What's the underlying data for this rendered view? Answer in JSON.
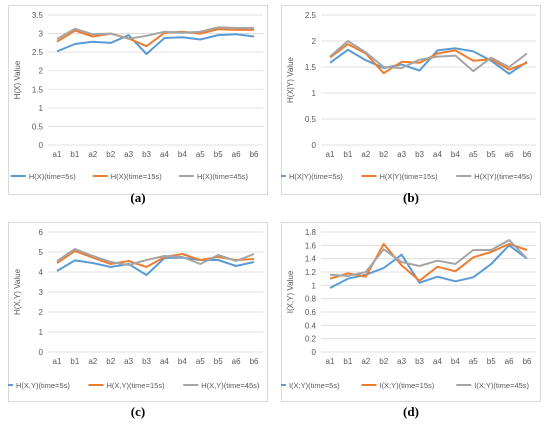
{
  "chart_data": [
    {
      "type": "line",
      "caption": "(a)",
      "ylabel": "H(X) Value",
      "categories": [
        "a1",
        "b1",
        "a2",
        "b2",
        "a3",
        "b3",
        "a4",
        "b4",
        "a5",
        "b5",
        "a6",
        "b6"
      ],
      "ylim": [
        0,
        3.5
      ],
      "yticks": [
        "0",
        "0.5",
        "1",
        "1.5",
        "2",
        "2.5",
        "3",
        "3.5"
      ],
      "series": [
        {
          "name": "H(X)(time=5s)",
          "color": "#5b9bd5",
          "values": [
            2.52,
            2.72,
            2.78,
            2.75,
            2.96,
            2.45,
            2.88,
            2.9,
            2.84,
            2.96,
            2.98,
            2.92
          ]
        },
        {
          "name": "H(X)(time=15s)",
          "color": "#ed7d31",
          "values": [
            2.78,
            3.08,
            2.92,
            3.0,
            2.87,
            2.66,
            3.02,
            3.05,
            3.0,
            3.12,
            3.1,
            3.1
          ]
        },
        {
          "name": "H(X)(time=45s)",
          "color": "#a5a5a5",
          "values": [
            2.85,
            3.13,
            2.98,
            3.0,
            2.86,
            2.94,
            3.05,
            3.02,
            3.05,
            3.17,
            3.15,
            3.15
          ]
        }
      ]
    },
    {
      "type": "line",
      "caption": "(b)",
      "ylabel": "H(X|Y) Value",
      "categories": [
        "a1",
        "b1",
        "a2",
        "b2",
        "a3",
        "b3",
        "a4",
        "b4",
        "a5",
        "b5",
        "a6",
        "b6"
      ],
      "ylim": [
        0,
        2.5
      ],
      "yticks": [
        "0",
        "0.5",
        "1",
        "1.5",
        "2",
        "2.5"
      ],
      "series": [
        {
          "name": "H(X|Y)(time=5s)",
          "color": "#5b9bd5",
          "values": [
            1.58,
            1.83,
            1.63,
            1.48,
            1.55,
            1.43,
            1.82,
            1.86,
            1.8,
            1.62,
            1.37,
            1.6
          ]
        },
        {
          "name": "H(X|Y)(time=15s)",
          "color": "#ed7d31",
          "values": [
            1.68,
            1.94,
            1.76,
            1.38,
            1.6,
            1.58,
            1.76,
            1.82,
            1.62,
            1.65,
            1.45,
            1.58
          ]
        },
        {
          "name": "H(X|Y)(time=45s)",
          "color": "#a5a5a5",
          "values": [
            1.7,
            2.0,
            1.78,
            1.5,
            1.48,
            1.64,
            1.7,
            1.72,
            1.42,
            1.68,
            1.5,
            1.76
          ]
        }
      ]
    },
    {
      "type": "line",
      "caption": "(c)",
      "ylabel": "H(X,Y) Value",
      "categories": [
        "a1",
        "b1",
        "a2",
        "b2",
        "a3",
        "b3",
        "a4",
        "b4",
        "a5",
        "b5",
        "a6",
        "b6"
      ],
      "ylim": [
        0,
        6
      ],
      "yticks": [
        "0",
        "1",
        "2",
        "3",
        "4",
        "5",
        "6"
      ],
      "series": [
        {
          "name": "H(X,Y)(time=5s)",
          "color": "#5b9bd5",
          "values": [
            4.05,
            4.58,
            4.45,
            4.25,
            4.4,
            3.85,
            4.7,
            4.72,
            4.6,
            4.6,
            4.3,
            4.5
          ]
        },
        {
          "name": "H(X,Y)(time=15s)",
          "color": "#ed7d31",
          "values": [
            4.45,
            5.05,
            4.72,
            4.4,
            4.55,
            4.25,
            4.75,
            4.9,
            4.6,
            4.75,
            4.6,
            4.65
          ]
        },
        {
          "name": "H(X,Y)(time=45s)",
          "color": "#a5a5a5",
          "values": [
            4.55,
            5.15,
            4.8,
            4.5,
            4.35,
            4.6,
            4.8,
            4.75,
            4.4,
            4.85,
            4.55,
            4.9
          ]
        }
      ]
    },
    {
      "type": "line",
      "caption": "(d)",
      "ylabel": "I(X;Y) Value",
      "categories": [
        "a1",
        "b1",
        "a2",
        "b2",
        "a3",
        "b3",
        "a4",
        "b4",
        "a5",
        "b5",
        "a6",
        "b6"
      ],
      "ylim": [
        0,
        1.8
      ],
      "yticks": [
        "0",
        "0.2",
        "0.4",
        "0.6",
        "0.8",
        "1",
        "1.2",
        "1.4",
        "1.6",
        "1.8"
      ],
      "series": [
        {
          "name": "I(X;Y)(time=5s)",
          "color": "#5b9bd5",
          "values": [
            0.96,
            1.1,
            1.16,
            1.26,
            1.46,
            1.04,
            1.13,
            1.06,
            1.12,
            1.32,
            1.6,
            1.4
          ]
        },
        {
          "name": "I(X;Y)(time=15s)",
          "color": "#ed7d31",
          "values": [
            1.1,
            1.18,
            1.13,
            1.62,
            1.3,
            1.07,
            1.28,
            1.21,
            1.42,
            1.5,
            1.62,
            1.53
          ]
        },
        {
          "name": "I(X;Y)(time=45s)",
          "color": "#a5a5a5",
          "values": [
            1.16,
            1.14,
            1.2,
            1.54,
            1.35,
            1.29,
            1.37,
            1.32,
            1.53,
            1.53,
            1.68,
            1.4
          ]
        }
      ]
    }
  ]
}
